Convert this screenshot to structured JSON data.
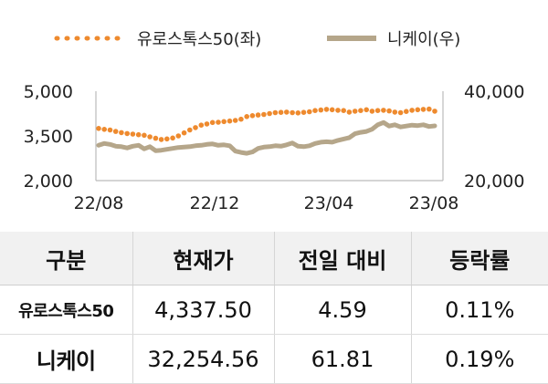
{
  "chart_data": {
    "type": "line",
    "series": [
      {
        "name": "유로스톡스50(좌)",
        "axis": "left",
        "color": "#ee8a2e",
        "style": "dotted",
        "values": [
          3750,
          3720,
          3700,
          3650,
          3610,
          3580,
          3560,
          3540,
          3520,
          3470,
          3420,
          3380,
          3400,
          3430,
          3500,
          3600,
          3700,
          3780,
          3860,
          3900,
          3950,
          3960,
          3980,
          4000,
          4020,
          4060,
          4150,
          4180,
          4200,
          4220,
          4250,
          4280,
          4290,
          4300,
          4280,
          4270,
          4290,
          4310,
          4350,
          4370,
          4390,
          4380,
          4360,
          4350,
          4300,
          4330,
          4350,
          4380,
          4330,
          4350,
          4360,
          4340,
          4300,
          4280,
          4320,
          4360,
          4380,
          4390,
          4400,
          4330
        ]
      },
      {
        "name": "니케이(우)",
        "axis": "right",
        "color": "#b5a68a",
        "style": "solid",
        "values": [
          27900,
          28300,
          28100,
          27700,
          27600,
          27300,
          27700,
          27900,
          27100,
          27600,
          26700,
          26800,
          27000,
          27200,
          27400,
          27500,
          27600,
          27800,
          27900,
          28100,
          28200,
          27900,
          28000,
          27800,
          26600,
          26300,
          26100,
          26400,
          27200,
          27500,
          27600,
          27800,
          27700,
          28000,
          28400,
          27700,
          27600,
          27800,
          28300,
          28600,
          28700,
          28600,
          29000,
          29300,
          29600,
          30500,
          30800,
          31000,
          31500,
          32500,
          33000,
          32200,
          32500,
          32000,
          32200,
          32400,
          32300,
          32500,
          32100,
          32254.56
        ]
      }
    ],
    "x_ticks": [
      "22/08",
      "22/12",
      "23/04",
      "23/08"
    ],
    "left_axis": {
      "ylim": [
        2000,
        5000
      ],
      "ticks": [
        "5,000",
        "3,500",
        "2,000"
      ]
    },
    "right_axis": {
      "ylim": [
        20000,
        40000
      ],
      "ticks": [
        "40,000",
        "20,000"
      ]
    },
    "legend_placement": "top",
    "grid": false
  },
  "table": {
    "headers": [
      "구분",
      "현재가",
      "전일 대비",
      "등락률"
    ],
    "rows": [
      [
        "유로스톡스50",
        "4,337.50",
        "4.59",
        "0.11%"
      ],
      [
        "니케이",
        "32,254.56",
        "61.81",
        "0.19%"
      ]
    ]
  }
}
